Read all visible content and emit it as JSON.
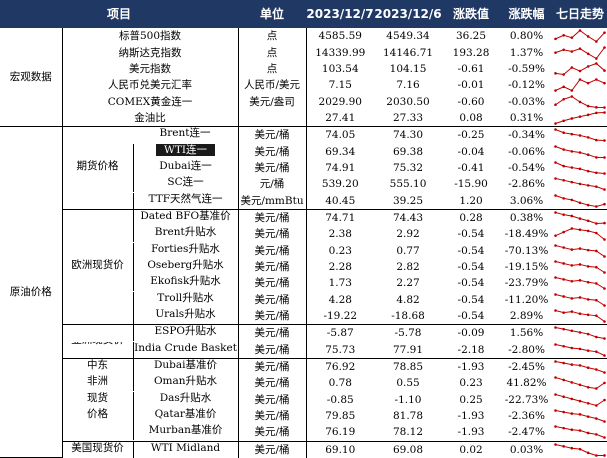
{
  "header": {
    "item": "项目",
    "unit": "单位",
    "d1": "2023/12/7",
    "d2": "2023/12/6",
    "chg": "涨跌值",
    "pct": "涨跌幅",
    "trend": "七日走势"
  },
  "groups": {
    "macro": "宏观数据",
    "crude": "原油价格",
    "futures": "期货价格",
    "europe": "欧洲现货价",
    "asia": "亚洲现货价",
    "mea": "中东非洲现货价格",
    "mea_lines": [
      "中东",
      "非洲",
      "现货",
      "价格"
    ],
    "us": "美国现货价"
  },
  "colors": {
    "header_bg": "#1f3864",
    "spark": "#c00000"
  },
  "rows": [
    {
      "name": "标普500指数",
      "unit": "点",
      "v1": "4585.59",
      "v2": "4549.34",
      "chg": "36.25",
      "pct": "0.80%",
      "spark": [
        4560,
        4575,
        4565,
        4595,
        4570,
        4549,
        4586
      ]
    },
    {
      "name": "纳斯达克指数",
      "unit": "点",
      "v1": "14339.99",
      "v2": "14146.71",
      "chg": "193.28",
      "pct": "1.37%",
      "spark": [
        14250,
        14300,
        14270,
        14320,
        14230,
        14147,
        14340
      ]
    },
    {
      "name": "美元指数",
      "unit": "点",
      "v1": "103.54",
      "v2": "104.15",
      "chg": "-0.61",
      "pct": "-0.59%",
      "spark": [
        103.3,
        103.2,
        103.8,
        103.5,
        103.9,
        104.15,
        103.54
      ]
    },
    {
      "name": "人民币兑美元汇率",
      "unit": "人民币/美元",
      "v1": "7.15",
      "v2": "7.16",
      "chg": "-0.01",
      "pct": "-0.12%",
      "spark": [
        7.13,
        7.14,
        7.13,
        7.16,
        7.15,
        7.16,
        7.15
      ]
    },
    {
      "name": "COMEX黄金连一",
      "unit": "美元/盎司",
      "v1": "2029.90",
      "v2": "2030.50",
      "chg": "-0.60",
      "pct": "-0.03%",
      "spark": [
        2040,
        2060,
        2070,
        2050,
        2035,
        2030.5,
        2029.9
      ]
    },
    {
      "name": "金油比",
      "unit": "",
      "v1": "27.41",
      "v2": "27.33",
      "chg": "0.08",
      "pct": "0.31%",
      "spark": [
        25.0,
        25.6,
        26.1,
        26.5,
        26.9,
        27.33,
        27.41
      ]
    },
    {
      "name": "Brent连一",
      "unit": "美元/桶",
      "v1": "74.05",
      "v2": "74.30",
      "chg": "-0.25",
      "pct": "-0.34%",
      "spark": [
        80.9,
        78.9,
        78.0,
        77.2,
        76.0,
        74.3,
        74.05
      ]
    },
    {
      "name": "WTI连一",
      "unit": "美元/桶",
      "v1": "69.34",
      "v2": "69.38",
      "chg": "-0.04",
      "pct": "-0.06%",
      "spark": [
        75.9,
        74.1,
        73.0,
        72.3,
        71.0,
        69.38,
        69.34
      ]
    },
    {
      "name": "Dubai连一",
      "unit": "美元/桶",
      "v1": "74.91",
      "v2": "75.32",
      "chg": "-0.41",
      "pct": "-0.54%",
      "spark": [
        81.0,
        79.0,
        78.2,
        77.5,
        76.2,
        75.32,
        74.91
      ]
    },
    {
      "name": "SC连一",
      "unit": "元/桶",
      "v1": "539.20",
      "v2": "555.10",
      "chg": "-15.90",
      "pct": "-2.86%",
      "spark": [
        600,
        590,
        580,
        570,
        562,
        555.1,
        539.2
      ]
    },
    {
      "name": "TTF天然气连一",
      "unit": "美元/mmBtu",
      "v1": "40.45",
      "v2": "39.25",
      "chg": "1.20",
      "pct": "3.06%",
      "spark": [
        45,
        43.5,
        42.7,
        41.2,
        40,
        39.25,
        40.45
      ]
    },
    {
      "name": "Dated BFO基准价",
      "unit": "美元/桶",
      "v1": "74.71",
      "v2": "74.43",
      "chg": "0.28",
      "pct": "0.38%",
      "spark": [
        82,
        80.5,
        79.6,
        77.8,
        76.3,
        74.43,
        74.71
      ]
    },
    {
      "name": "Brent升贴水",
      "unit": "美元/桶",
      "v1": "2.38",
      "v2": "2.92",
      "chg": "-0.54",
      "pct": "-18.49%",
      "spark": [
        2.7,
        3.0,
        3.3,
        3.2,
        3.1,
        2.92,
        2.38
      ]
    },
    {
      "name": "Forties升贴水",
      "unit": "美元/桶",
      "v1": "0.23",
      "v2": "0.77",
      "chg": "-0.54",
      "pct": "-70.13%",
      "spark": [
        1.3,
        1.1,
        0.9,
        1.0,
        0.85,
        0.77,
        0.23
      ]
    },
    {
      "name": "Oseberg升贴水",
      "unit": "美元/桶",
      "v1": "2.28",
      "v2": "2.82",
      "chg": "-0.54",
      "pct": "-19.15%",
      "spark": [
        3.4,
        3.2,
        3.0,
        3.1,
        2.9,
        2.82,
        2.28
      ]
    },
    {
      "name": "Ekofisk升贴水",
      "unit": "美元/桶",
      "v1": "1.73",
      "v2": "2.27",
      "chg": "-0.54",
      "pct": "-23.79%",
      "spark": [
        2.9,
        2.7,
        2.5,
        2.6,
        2.4,
        2.27,
        1.73
      ]
    },
    {
      "name": "Troll升贴水",
      "unit": "美元/桶",
      "v1": "4.28",
      "v2": "4.82",
      "chg": "-0.54",
      "pct": "-11.20%",
      "spark": [
        5.4,
        5.2,
        5.0,
        5.1,
        4.9,
        4.82,
        4.28
      ]
    },
    {
      "name": "Urals升贴水",
      "unit": "美元/桶",
      "v1": "-19.22",
      "v2": "-18.68",
      "chg": "-0.54",
      "pct": "2.89%",
      "spark": [
        -18.2,
        -18.4,
        -18.3,
        -18.5,
        -18.6,
        -18.68,
        -19.22
      ]
    },
    {
      "name": "ESPO升贴水",
      "unit": "美元/桶",
      "v1": "-5.87",
      "v2": "-5.78",
      "chg": "-0.09",
      "pct": "1.56%",
      "spark": [
        -5.2,
        -5.3,
        -5.4,
        -5.5,
        -5.6,
        -5.78,
        -5.87
      ]
    },
    {
      "name": "India Crude Basket",
      "unit": "美元/桶",
      "v1": "75.73",
      "v2": "77.91",
      "chg": "-2.18",
      "pct": "-2.80%",
      "spark": [
        82,
        81,
        80,
        79.5,
        78.5,
        77.91,
        75.73
      ]
    },
    {
      "name": "Dubai基准价",
      "unit": "美元/桶",
      "v1": "76.92",
      "v2": "78.85",
      "chg": "-1.93",
      "pct": "-2.45%",
      "spark": [
        84,
        83,
        82,
        81.5,
        80,
        78.85,
        76.92
      ]
    },
    {
      "name": "Oman升贴水",
      "unit": "美元/桶",
      "v1": "0.78",
      "v2": "0.55",
      "chg": "0.23",
      "pct": "41.82%",
      "spark": [
        1.0,
        0.9,
        0.8,
        0.7,
        0.6,
        0.55,
        0.78
      ]
    },
    {
      "name": "Das升贴水",
      "unit": "美元/桶",
      "v1": "-0.85",
      "v2": "-1.10",
      "chg": "0.25",
      "pct": "-22.73%",
      "spark": [
        -0.6,
        -0.7,
        -0.8,
        -0.9,
        -1.0,
        -1.1,
        -0.85
      ]
    },
    {
      "name": "Qatar基准价",
      "unit": "美元/桶",
      "v1": "79.85",
      "v2": "81.78",
      "chg": "-1.93",
      "pct": "-2.36%",
      "spark": [
        87,
        86,
        85,
        84.5,
        83,
        81.78,
        79.85
      ]
    },
    {
      "name": "Murban基准价",
      "unit": "美元/桶",
      "v1": "76.19",
      "v2": "78.12",
      "chg": "-1.93",
      "pct": "-2.47%",
      "spark": [
        83,
        82,
        81,
        80.5,
        79,
        78.12,
        76.19
      ]
    },
    {
      "name": "WTI Midland",
      "unit": "美元/桶",
      "v1": "69.10",
      "v2": "69.08",
      "chg": "0.02",
      "pct": "0.03%",
      "spark": [
        75,
        74,
        73,
        72.5,
        70.5,
        69.08,
        69.1
      ]
    }
  ]
}
